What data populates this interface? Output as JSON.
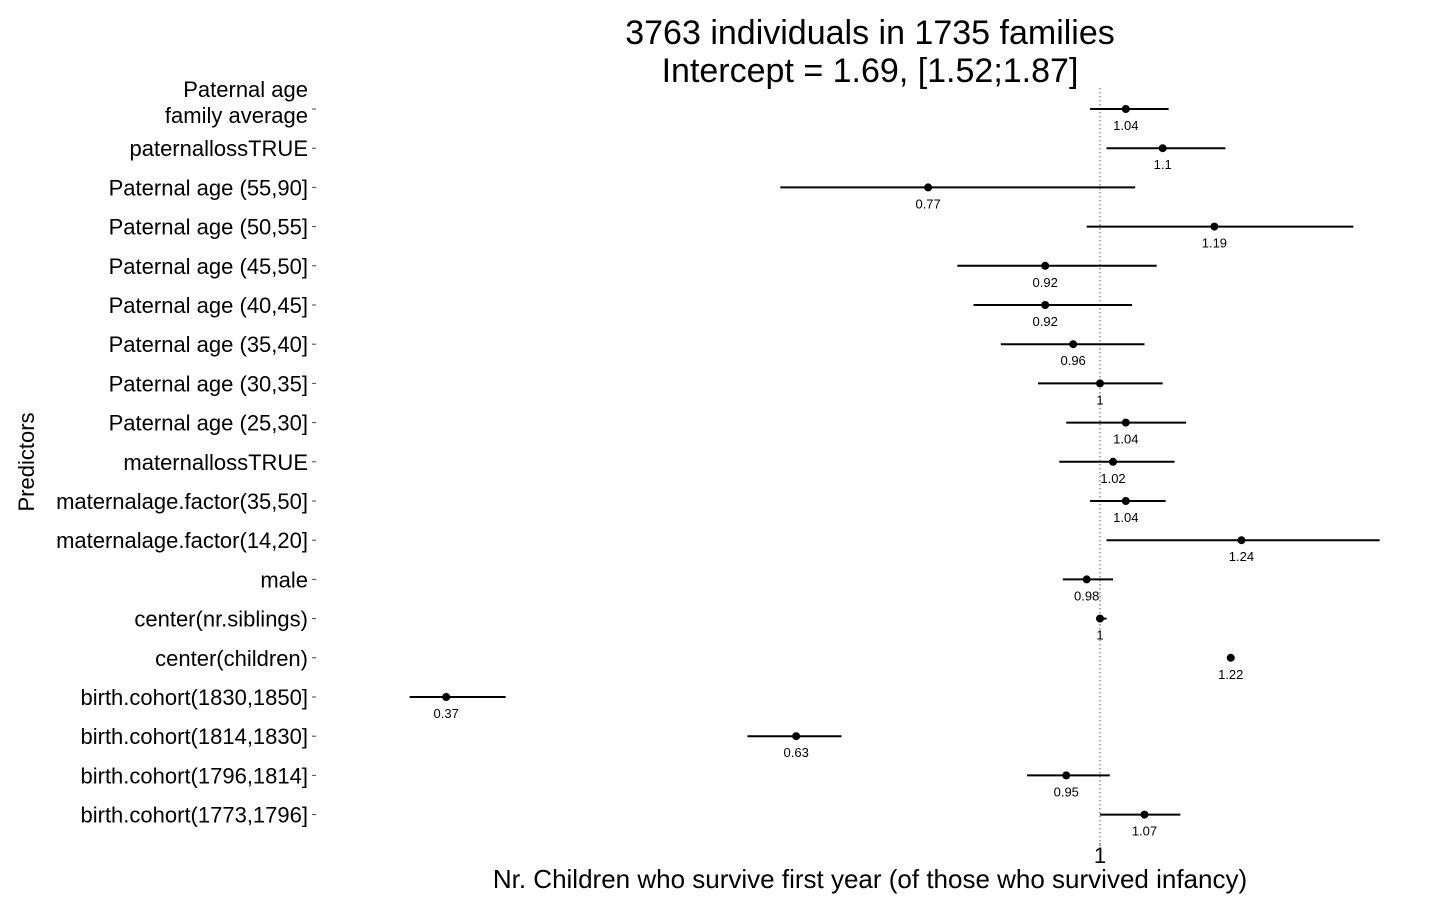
{
  "chart_data": {
    "type": "forest",
    "title_lines": [
      "3763 individuals in 1735 families",
      "Intercept = 1.69, [1.52;1.87]"
    ],
    "xlabel": "Nr. Children who survive first year (of those who survived infancy)",
    "ylabel": "Predictors",
    "x_scale": "log",
    "xlim": [
      0.34,
      1.4
    ],
    "xticks": [
      1
    ],
    "xtick_labels": [
      "1"
    ],
    "reference_line": 1,
    "rows": [
      {
        "label": "Paternal age\nfamily average",
        "estimate": 1.04,
        "lower": 0.985,
        "upper": 1.11,
        "value_label": "1.04"
      },
      {
        "label": "paternallossTRUE",
        "estimate": 1.1,
        "lower": 1.01,
        "upper": 1.21,
        "value_label": "1.1"
      },
      {
        "label": "Paternal age (55,90]",
        "estimate": 0.77,
        "lower": 0.615,
        "upper": 1.055,
        "value_label": "0.77"
      },
      {
        "label": "Paternal age (50,55]",
        "estimate": 1.19,
        "lower": 0.98,
        "upper": 1.47,
        "value_label": "1.19"
      },
      {
        "label": "Paternal age (45,50]",
        "estimate": 0.92,
        "lower": 0.805,
        "upper": 1.09,
        "value_label": "0.92"
      },
      {
        "label": "Paternal age (40,45]",
        "estimate": 0.92,
        "lower": 0.825,
        "upper": 1.05,
        "value_label": "0.92"
      },
      {
        "label": "Paternal age (35,40]",
        "estimate": 0.96,
        "lower": 0.86,
        "upper": 1.07,
        "value_label": "0.96"
      },
      {
        "label": "Paternal age (30,35]",
        "estimate": 1.0,
        "lower": 0.91,
        "upper": 1.1,
        "value_label": "1"
      },
      {
        "label": "Paternal age (25,30]",
        "estimate": 1.04,
        "lower": 0.95,
        "upper": 1.14,
        "value_label": "1.04"
      },
      {
        "label": "maternallossTRUE",
        "estimate": 1.02,
        "lower": 0.94,
        "upper": 1.12,
        "value_label": "1.02"
      },
      {
        "label": "maternalage.factor(35,50]",
        "estimate": 1.04,
        "lower": 0.985,
        "upper": 1.105,
        "value_label": "1.04"
      },
      {
        "label": "maternalage.factor(14,20]",
        "estimate": 1.24,
        "lower": 1.01,
        "upper": 1.53,
        "value_label": "1.24"
      },
      {
        "label": "male",
        "estimate": 0.98,
        "lower": 0.945,
        "upper": 1.02,
        "value_label": "0.98"
      },
      {
        "label": "center(nr.siblings)",
        "estimate": 1.0,
        "lower": 0.995,
        "upper": 1.01,
        "value_label": "1"
      },
      {
        "label": "center(children)",
        "estimate": 1.22,
        "lower": 1.215,
        "upper": 1.225,
        "value_label": "1.22"
      },
      {
        "label": "birth.cohort(1830,1850]",
        "estimate": 0.37,
        "lower": 0.35,
        "upper": 0.405,
        "value_label": "0.37"
      },
      {
        "label": "birth.cohort(1814,1830]",
        "estimate": 0.63,
        "lower": 0.585,
        "upper": 0.675,
        "value_label": "0.63"
      },
      {
        "label": "birth.cohort(1796,1814]",
        "estimate": 0.95,
        "lower": 0.895,
        "upper": 1.015,
        "value_label": "0.95"
      },
      {
        "label": "birth.cohort(1773,1796]",
        "estimate": 1.07,
        "lower": 1.0,
        "upper": 1.13,
        "value_label": "1.07"
      }
    ]
  }
}
